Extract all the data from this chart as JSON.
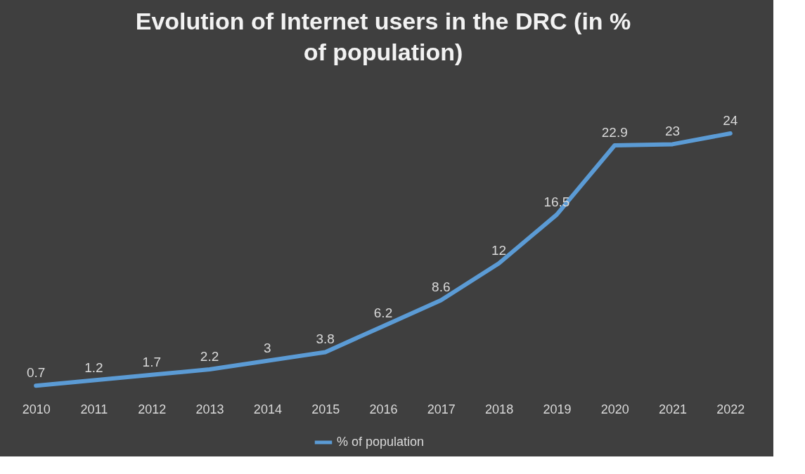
{
  "chart_data": {
    "type": "line",
    "title": "Evolution of Internet users in the DRC (in % of population)",
    "categories": [
      "2010",
      "2011",
      "2012",
      "2013",
      "2014",
      "2015",
      "2016",
      "2017",
      "2018",
      "2019",
      "2020",
      "2021",
      "2022"
    ],
    "series": [
      {
        "name": "% of population",
        "color": "#5b9bd5",
        "values": [
          0.7,
          1.2,
          1.7,
          2.2,
          3,
          3.8,
          6.2,
          8.6,
          12,
          16.5,
          22.9,
          23,
          24
        ]
      }
    ],
    "data_labels": true,
    "legend": "bottom",
    "grid": false,
    "marker": "none",
    "line_style": "solid"
  }
}
